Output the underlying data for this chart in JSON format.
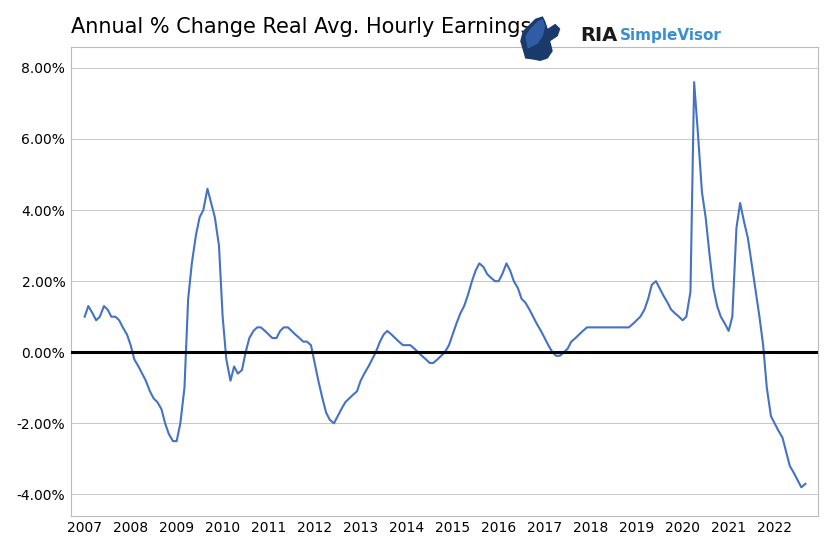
{
  "title": "Annual % Change Real Avg. Hourly Earnings",
  "line_color": "#4472c4",
  "zero_line_color": "#000000",
  "background_color": "#ffffff",
  "grid_color": "#c8c8c8",
  "title_fontsize": 15,
  "tick_fontsize": 10,
  "ylim": [
    -0.046,
    0.086
  ],
  "yticks": [
    -0.04,
    -0.02,
    0.0,
    0.02,
    0.04,
    0.06,
    0.08
  ],
  "xtick_positions": [
    2007,
    2008,
    2009,
    2010,
    2011,
    2012,
    2013,
    2014,
    2015,
    2016,
    2017,
    2018,
    2019,
    2020,
    2021,
    2022
  ],
  "xtick_labels": [
    "2007",
    "2008",
    "2009",
    "2010",
    "2011",
    "2012",
    "2013",
    "2014",
    "2015",
    "2016",
    "2017",
    "2018",
    "2019",
    "2020",
    "2021",
    "2022"
  ],
  "xlim_left": 2006.7,
  "xlim_right": 2022.95,
  "logo_ria_color": "#1a1a1a",
  "logo_sv_color": "#3a8fd4",
  "x": [
    2007.0,
    2007.08,
    2007.17,
    2007.25,
    2007.33,
    2007.42,
    2007.5,
    2007.58,
    2007.67,
    2007.75,
    2007.83,
    2007.92,
    2008.0,
    2008.08,
    2008.17,
    2008.25,
    2008.33,
    2008.42,
    2008.5,
    2008.58,
    2008.67,
    2008.75,
    2008.83,
    2008.92,
    2009.0,
    2009.08,
    2009.17,
    2009.25,
    2009.33,
    2009.42,
    2009.5,
    2009.58,
    2009.67,
    2009.75,
    2009.83,
    2009.92,
    2010.0,
    2010.08,
    2010.17,
    2010.25,
    2010.33,
    2010.42,
    2010.5,
    2010.58,
    2010.67,
    2010.75,
    2010.83,
    2010.92,
    2011.0,
    2011.08,
    2011.17,
    2011.25,
    2011.33,
    2011.42,
    2011.5,
    2011.58,
    2011.67,
    2011.75,
    2011.83,
    2011.92,
    2012.0,
    2012.08,
    2012.17,
    2012.25,
    2012.33,
    2012.42,
    2012.5,
    2012.58,
    2012.67,
    2012.75,
    2012.83,
    2012.92,
    2013.0,
    2013.08,
    2013.17,
    2013.25,
    2013.33,
    2013.42,
    2013.5,
    2013.58,
    2013.67,
    2013.75,
    2013.83,
    2013.92,
    2014.0,
    2014.08,
    2014.17,
    2014.25,
    2014.33,
    2014.42,
    2014.5,
    2014.58,
    2014.67,
    2014.75,
    2014.83,
    2014.92,
    2015.0,
    2015.08,
    2015.17,
    2015.25,
    2015.33,
    2015.42,
    2015.5,
    2015.58,
    2015.67,
    2015.75,
    2015.83,
    2015.92,
    2016.0,
    2016.08,
    2016.17,
    2016.25,
    2016.33,
    2016.42,
    2016.5,
    2016.58,
    2016.67,
    2016.75,
    2016.83,
    2016.92,
    2017.0,
    2017.08,
    2017.17,
    2017.25,
    2017.33,
    2017.42,
    2017.5,
    2017.58,
    2017.67,
    2017.75,
    2017.83,
    2017.92,
    2018.0,
    2018.08,
    2018.17,
    2018.25,
    2018.33,
    2018.42,
    2018.5,
    2018.58,
    2018.67,
    2018.75,
    2018.83,
    2018.92,
    2019.0,
    2019.08,
    2019.17,
    2019.25,
    2019.33,
    2019.42,
    2019.5,
    2019.58,
    2019.67,
    2019.75,
    2019.83,
    2019.92,
    2020.0,
    2020.08,
    2020.17,
    2020.25,
    2020.33,
    2020.42,
    2020.5,
    2020.58,
    2020.67,
    2020.75,
    2020.83,
    2020.92,
    2021.0,
    2021.08,
    2021.17,
    2021.25,
    2021.33,
    2021.42,
    2021.5,
    2021.58,
    2021.67,
    2021.75,
    2021.83,
    2021.92,
    2022.0,
    2022.08,
    2022.17,
    2022.25,
    2022.33,
    2022.42,
    2022.5,
    2022.58,
    2022.67
  ],
  "y": [
    0.01,
    0.013,
    0.011,
    0.009,
    0.01,
    0.013,
    0.012,
    0.01,
    0.01,
    0.009,
    0.007,
    0.005,
    0.002,
    -0.002,
    -0.004,
    -0.006,
    -0.008,
    -0.011,
    -0.013,
    -0.014,
    -0.016,
    -0.02,
    -0.023,
    -0.025,
    -0.025,
    -0.02,
    -0.01,
    0.015,
    0.025,
    0.033,
    0.038,
    0.04,
    0.046,
    0.042,
    0.038,
    0.03,
    0.01,
    -0.002,
    -0.008,
    -0.004,
    -0.006,
    -0.005,
    0.0,
    0.004,
    0.006,
    0.007,
    0.007,
    0.006,
    0.005,
    0.004,
    0.004,
    0.006,
    0.007,
    0.007,
    0.006,
    0.005,
    0.004,
    0.003,
    0.003,
    0.002,
    -0.003,
    -0.008,
    -0.013,
    -0.017,
    -0.019,
    -0.02,
    -0.018,
    -0.016,
    -0.014,
    -0.013,
    -0.012,
    -0.011,
    -0.008,
    -0.006,
    -0.004,
    -0.002,
    0.0,
    0.003,
    0.005,
    0.006,
    0.005,
    0.004,
    0.003,
    0.002,
    0.002,
    0.002,
    0.001,
    0.0,
    -0.001,
    -0.002,
    -0.003,
    -0.003,
    -0.002,
    -0.001,
    0.0,
    0.002,
    0.005,
    0.008,
    0.011,
    0.013,
    0.016,
    0.02,
    0.023,
    0.025,
    0.024,
    0.022,
    0.021,
    0.02,
    0.02,
    0.022,
    0.025,
    0.023,
    0.02,
    0.018,
    0.015,
    0.014,
    0.012,
    0.01,
    0.008,
    0.006,
    0.004,
    0.002,
    0.0,
    -0.001,
    -0.001,
    0.0,
    0.001,
    0.003,
    0.004,
    0.005,
    0.006,
    0.007,
    0.007,
    0.007,
    0.007,
    0.007,
    0.007,
    0.007,
    0.007,
    0.007,
    0.007,
    0.007,
    0.007,
    0.008,
    0.009,
    0.01,
    0.012,
    0.015,
    0.019,
    0.02,
    0.018,
    0.016,
    0.014,
    0.012,
    0.011,
    0.01,
    0.009,
    0.01,
    0.017,
    0.076,
    0.062,
    0.045,
    0.038,
    0.028,
    0.018,
    0.013,
    0.01,
    0.008,
    0.006,
    0.01,
    0.035,
    0.042,
    0.037,
    0.032,
    0.025,
    0.018,
    0.01,
    0.002,
    -0.01,
    -0.018,
    -0.02,
    -0.022,
    -0.024,
    -0.028,
    -0.032,
    -0.034,
    -0.036,
    -0.038,
    -0.037
  ]
}
